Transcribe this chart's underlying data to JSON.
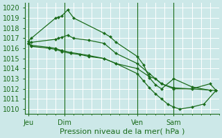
{
  "title": "Pression niveau de la mer( hPa )",
  "bg_color": "#cce8e8",
  "grid_color": "#ffffff",
  "line_color": "#1a6b1a",
  "ylim": [
    1009.5,
    1020.5
  ],
  "yticks": [
    1010,
    1011,
    1012,
    1013,
    1014,
    1015,
    1016,
    1017,
    1018,
    1019,
    1020
  ],
  "xtick_labels": [
    "Jeu",
    "Dim",
    "Ven",
    "Sam"
  ],
  "xtick_positions": [
    0,
    24,
    72,
    96
  ],
  "xlim": [
    -2,
    126
  ],
  "vline_positions": [
    0,
    24,
    72,
    96
  ],
  "num_xgrid": 20,
  "ylabel_fontsize": 8,
  "tick_fontsize": 7,
  "series1_x": [
    0,
    2,
    18,
    20,
    22,
    26,
    30,
    50,
    54,
    58,
    72,
    76,
    80,
    84,
    88,
    96,
    108,
    120
  ],
  "series1_y": [
    1016.7,
    1017.0,
    1019.0,
    1019.1,
    1019.2,
    1019.8,
    1019.0,
    1017.5,
    1017.15,
    1016.6,
    1015.2,
    1014.4,
    1013.1,
    1012.4,
    1012.0,
    1013.0,
    1012.2,
    1011.85
  ],
  "series2_x": [
    0,
    2,
    18,
    20,
    22,
    26,
    30,
    40,
    50,
    58,
    72,
    80,
    88,
    96,
    108,
    120,
    124
  ],
  "series2_y": [
    1016.5,
    1016.6,
    1016.9,
    1017.0,
    1017.1,
    1017.3,
    1017.0,
    1016.8,
    1016.5,
    1015.5,
    1014.5,
    1013.5,
    1012.5,
    1012.0,
    1012.0,
    1012.5,
    1011.85
  ],
  "series3_x": [
    0,
    2,
    14,
    18,
    22,
    28,
    34,
    40,
    50,
    58,
    72,
    76,
    80,
    84,
    88,
    92,
    96,
    100,
    108,
    116,
    124
  ],
  "series3_y": [
    1016.5,
    1016.2,
    1016.0,
    1015.9,
    1015.7,
    1015.5,
    1015.4,
    1015.2,
    1015.0,
    1014.5,
    1013.5,
    1012.8,
    1012.1,
    1011.5,
    1011.0,
    1010.5,
    1010.2,
    1010.0,
    1010.2,
    1010.5,
    1011.85
  ],
  "series4_x": [
    0,
    2,
    14,
    18,
    22,
    28,
    40,
    50,
    58,
    72,
    80,
    84,
    88,
    96,
    124
  ],
  "series4_y": [
    1016.5,
    1016.3,
    1016.1,
    1016.0,
    1015.8,
    1015.6,
    1015.3,
    1015.0,
    1014.5,
    1014.0,
    1013.2,
    1013.0,
    1012.5,
    1012.1,
    1011.85
  ]
}
